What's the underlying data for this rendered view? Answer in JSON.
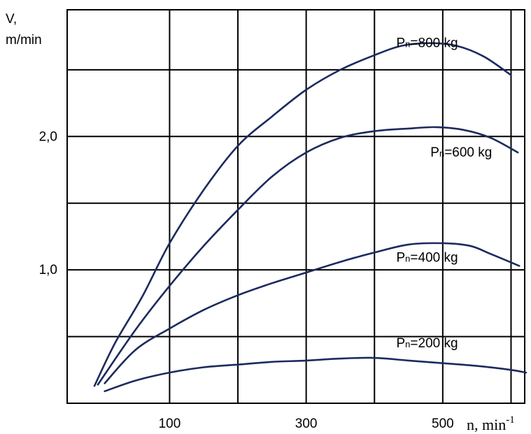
{
  "chart_data": {
    "type": "line",
    "ylabel_line1": "V,",
    "ylabel_line2": "m/min",
    "xlabel": "n, min",
    "xlabel_sup": "-1",
    "xlim": [
      -50,
      620
    ],
    "ylim": [
      0,
      2.95
    ],
    "x_gridlines": [
      100,
      200,
      300,
      400,
      500,
      600
    ],
    "y_gridlines": [
      0.5,
      1.0,
      1.5,
      2.0,
      2.5
    ],
    "x_ticks": [
      {
        "value": 100,
        "label": "100"
      },
      {
        "value": 300,
        "label": "300"
      },
      {
        "value": 500,
        "label": "500"
      }
    ],
    "y_ticks": [
      {
        "value": 1.0,
        "label": "1,0"
      },
      {
        "value": 2.0,
        "label": "2,0"
      }
    ],
    "line_color": "#1c2a5e",
    "series": [
      {
        "label_prefix": "P",
        "label_sub": "n",
        "label_suffix": "=800 kg",
        "label_at": [
          432,
          2.67
        ],
        "points": [
          [
            -10,
            0.13
          ],
          [
            20,
            0.45
          ],
          [
            60,
            0.8
          ],
          [
            100,
            1.2
          ],
          [
            150,
            1.6
          ],
          [
            200,
            1.93
          ],
          [
            250,
            2.15
          ],
          [
            300,
            2.35
          ],
          [
            350,
            2.5
          ],
          [
            400,
            2.61
          ],
          [
            440,
            2.68
          ],
          [
            480,
            2.7
          ],
          [
            520,
            2.68
          ],
          [
            560,
            2.6
          ],
          [
            600,
            2.46
          ]
        ]
      },
      {
        "label_prefix": "P",
        "label_sub": "n",
        "label_suffix": "=600 kg",
        "label_at": [
          482,
          1.85
        ],
        "points": [
          [
            -5,
            0.14
          ],
          [
            50,
            0.55
          ],
          [
            100,
            0.88
          ],
          [
            150,
            1.18
          ],
          [
            200,
            1.45
          ],
          [
            250,
            1.7
          ],
          [
            300,
            1.88
          ],
          [
            350,
            1.99
          ],
          [
            400,
            2.04
          ],
          [
            450,
            2.06
          ],
          [
            490,
            2.07
          ],
          [
            530,
            2.05
          ],
          [
            570,
            1.99
          ],
          [
            610,
            1.88
          ]
        ]
      },
      {
        "label_prefix": "P",
        "label_sub": "n",
        "label_suffix": "=400 kg",
        "label_at": [
          432,
          1.06
        ],
        "points": [
          [
            5,
            0.15
          ],
          [
            50,
            0.4
          ],
          [
            100,
            0.56
          ],
          [
            150,
            0.7
          ],
          [
            200,
            0.81
          ],
          [
            250,
            0.9
          ],
          [
            300,
            0.98
          ],
          [
            350,
            1.06
          ],
          [
            400,
            1.13
          ],
          [
            450,
            1.19
          ],
          [
            500,
            1.2
          ],
          [
            540,
            1.18
          ],
          [
            570,
            1.12
          ],
          [
            612,
            1.03
          ]
        ]
      },
      {
        "label_prefix": "P",
        "label_sub": "n",
        "label_suffix": "=200 kg",
        "label_at": [
          432,
          0.42
        ],
        "points": [
          [
            5,
            0.09
          ],
          [
            50,
            0.17
          ],
          [
            100,
            0.23
          ],
          [
            150,
            0.27
          ],
          [
            200,
            0.29
          ],
          [
            250,
            0.31
          ],
          [
            300,
            0.32
          ],
          [
            350,
            0.335
          ],
          [
            400,
            0.34
          ],
          [
            450,
            0.32
          ],
          [
            500,
            0.3
          ],
          [
            550,
            0.28
          ],
          [
            600,
            0.25
          ],
          [
            622,
            0.23
          ]
        ]
      }
    ]
  }
}
